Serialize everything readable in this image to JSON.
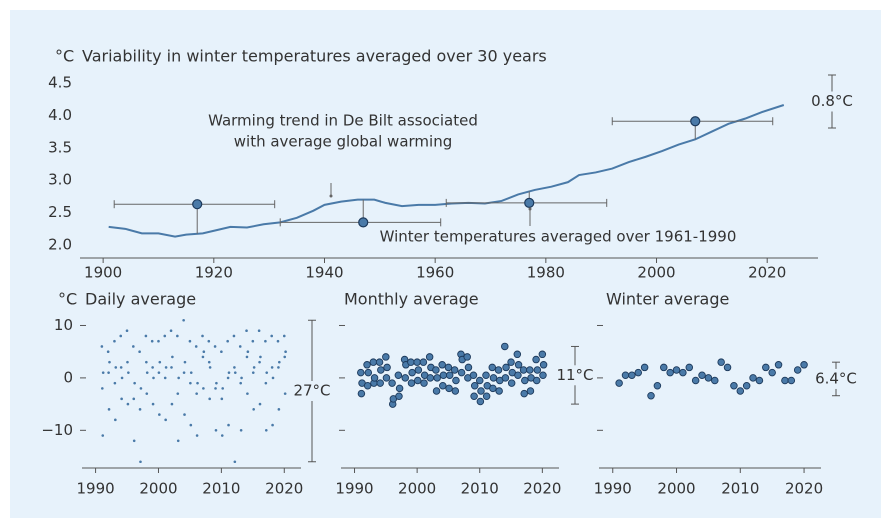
{
  "chart_data": [
    {
      "type": "line",
      "title": "Variability in winter temperatures averaged over 30 years",
      "y_unit": "°C",
      "x": [
        1901,
        1904,
        1907,
        1910,
        1913,
        1915,
        1918,
        1921,
        1923,
        1926,
        1929,
        1932,
        1935,
        1938,
        1940,
        1943,
        1946,
        1949,
        1951,
        1954,
        1957,
        1960,
        1963,
        1966,
        1969,
        1972,
        1975,
        1978,
        1981,
        1984,
        1986,
        1989,
        1992,
        1995,
        1998,
        2001,
        2004,
        2007,
        2010,
        2013,
        2016,
        2019,
        2023
      ],
      "values": [
        2.28,
        2.25,
        2.18,
        2.18,
        2.13,
        2.16,
        2.18,
        2.24,
        2.28,
        2.27,
        2.32,
        2.35,
        2.42,
        2.53,
        2.62,
        2.67,
        2.7,
        2.7,
        2.65,
        2.6,
        2.62,
        2.62,
        2.64,
        2.65,
        2.64,
        2.68,
        2.78,
        2.85,
        2.9,
        2.97,
        3.08,
        3.12,
        3.18,
        3.28,
        3.36,
        3.45,
        3.55,
        3.63,
        3.75,
        3.87,
        3.95,
        4.05,
        4.16
      ],
      "color": "#4a7aa8",
      "periods": {
        "x": [
          1917,
          1947,
          1977,
          2007
        ],
        "values": [
          2.63,
          2.35,
          2.65,
          3.91
        ],
        "start": [
          1902,
          1932,
          1962,
          1992
        ],
        "end": [
          1931,
          1961,
          1991,
          2021
        ]
      },
      "annotations": [
        "Warming trend in De Bilt associated",
        "with average global warming",
        "Winter temperatures averaged over 1961-1990"
      ],
      "range_label": "0.8°C",
      "xlim": [
        1896,
        2029
      ],
      "ylim": [
        1.8,
        4.7
      ],
      "xticks": [
        1900,
        1920,
        1940,
        1960,
        1980,
        2000,
        2020
      ],
      "yticks": [
        {
          "value": 2,
          "label": "2.0"
        },
        2.5,
        {
          "value": 3,
          "label": "3.0"
        },
        3.5,
        {
          "value": 4,
          "label": "4.0"
        },
        4.5
      ]
    },
    {
      "type": "scatter",
      "title": "Daily average",
      "y_unit": "°C",
      "marker": "dot",
      "color": "#4a7aa8",
      "show_ytick_labels": true,
      "x": [
        1991,
        1991.07,
        1991.14,
        1991.21,
        1992,
        1992.07,
        1992.14,
        1992.21,
        1993,
        1993.07,
        1993.14,
        1993.21,
        1994,
        1994.07,
        1994.14,
        1994.21,
        1995,
        1995.07,
        1995.14,
        1995.21,
        1996,
        1996.07,
        1996.14,
        1996.21,
        1997,
        1997.07,
        1997.14,
        1997.21,
        1998,
        1998.07,
        1998.14,
        1998.21,
        1999,
        1999.07,
        1999.14,
        1999.21,
        2000,
        2000.07,
        2000.14,
        2000.21,
        2001,
        2001.07,
        2001.14,
        2001.21,
        2002,
        2002.07,
        2002.14,
        2002.21,
        2003,
        2003.07,
        2003.14,
        2003.21,
        2004,
        2004.07,
        2004.14,
        2004.21,
        2005,
        2005.07,
        2005.14,
        2005.21,
        2006,
        2006.07,
        2006.14,
        2006.21,
        2007,
        2007.07,
        2007.14,
        2007.21,
        2008,
        2008.07,
        2008.14,
        2008.21,
        2009,
        2009.07,
        2009.14,
        2009.21,
        2010,
        2010.07,
        2010.14,
        2010.21,
        2011,
        2011.07,
        2011.14,
        2011.21,
        2012,
        2012.07,
        2012.14,
        2012.21,
        2013,
        2013.07,
        2013.14,
        2013.21,
        2014,
        2014.07,
        2014.14,
        2014.21,
        2015,
        2015.07,
        2015.14,
        2015.21,
        2016,
        2016.07,
        2016.14,
        2016.21,
        2017,
        2017.07,
        2017.14,
        2017.21,
        2018,
        2018.07,
        2018.14,
        2018.21,
        2019,
        2019.07,
        2019.14,
        2019.21,
        2020,
        2020.07,
        2020.14,
        2020.21
      ],
      "values": [
        6,
        -2,
        -11,
        1,
        5,
        1,
        -6,
        3,
        7,
        -1,
        -8,
        2,
        8,
        2,
        -4,
        0,
        9,
        3,
        -5,
        1,
        6,
        -4,
        -12,
        -1,
        5,
        -6,
        -16,
        -2,
        8,
        3,
        -3,
        1,
        7,
        2,
        -5,
        0,
        7,
        1,
        -7,
        3,
        8,
        0,
        -8,
        2,
        9,
        2,
        -5,
        4,
        8,
        -3,
        -12,
        0,
        11,
        1,
        -7,
        3,
        7,
        -1,
        -9,
        1,
        6,
        -3,
        -11,
        -1,
        8,
        4,
        -2,
        5,
        7,
        3,
        -4,
        2,
        6,
        -2,
        -10,
        -1,
        5,
        -4,
        -11,
        -2,
        7,
        0,
        -9,
        1,
        8,
        2,
        -16,
        1,
        6,
        -1,
        -10,
        0,
        9,
        4,
        -3,
        5,
        7,
        1,
        -6,
        2,
        9,
        3,
        -5,
        4,
        7,
        -1,
        -10,
        1,
        8,
        2,
        -9,
        0,
        7,
        2,
        -6,
        3,
        8,
        4,
        -3,
        5
      ],
      "range_label": "27°C",
      "xlim": [
        1988,
        2022.5
      ],
      "ylim": [
        -17,
        12
      ],
      "xticks": [
        1990,
        2000,
        2010,
        2020
      ],
      "yticks": [
        {
          "value": -10,
          "label": "−10"
        },
        0,
        10
      ]
    },
    {
      "type": "scatter",
      "title": "Monthly average",
      "marker": "circle",
      "color": "#4a7aa8",
      "show_ytick_labels": false,
      "x": [
        1991,
        1991.1,
        1991.2,
        1992,
        1992.1,
        1992.2,
        1993,
        1993.1,
        1993.2,
        1994,
        1994.1,
        1994.2,
        1995,
        1995.1,
        1995.2,
        1996,
        1996.1,
        1996.2,
        1997,
        1997.1,
        1997.2,
        1998,
        1998.1,
        1998.2,
        1999,
        1999.1,
        1999.2,
        2000,
        2000.1,
        2000.2,
        2001,
        2001.1,
        2001.2,
        2002,
        2002.1,
        2002.2,
        2003,
        2003.1,
        2003.2,
        2004,
        2004.1,
        2004.2,
        2005,
        2005.1,
        2005.2,
        2006,
        2006.1,
        2006.2,
        2007,
        2007.1,
        2007.2,
        2008,
        2008.1,
        2008.2,
        2009,
        2009.1,
        2009.2,
        2010,
        2010.1,
        2010.2,
        2011,
        2011.1,
        2011.2,
        2012,
        2012.1,
        2012.2,
        2013,
        2013.1,
        2013.2,
        2014,
        2014.1,
        2014.2,
        2015,
        2015.1,
        2015.2,
        2016,
        2016.1,
        2016.2,
        2017,
        2017.1,
        2017.2,
        2018,
        2018.1,
        2018.2,
        2019,
        2019.1,
        2019.2,
        2020,
        2020.1,
        2020.2
      ],
      "values": [
        1,
        -3,
        -1,
        2.5,
        -1.5,
        1,
        3,
        -1,
        0,
        3,
        -1,
        1.5,
        4,
        0,
        2,
        -1,
        -5,
        -4,
        0.5,
        -3.5,
        -2,
        3.5,
        0,
        2.5,
        3,
        -1,
        1,
        3,
        -0.5,
        1.5,
        3,
        -1,
        0.5,
        4,
        0,
        2,
        1.5,
        -2.5,
        0,
        2.5,
        -1.5,
        0.5,
        2,
        -2,
        0.5,
        1.5,
        -2.5,
        -0.5,
        4.5,
        1,
        3.5,
        4,
        0,
        2,
        0.5,
        -3.5,
        -1.5,
        -0.5,
        -4.5,
        -2.5,
        0.5,
        -3.5,
        -1.5,
        2,
        -2,
        0,
        1.5,
        -2.5,
        -0.5,
        6,
        0,
        2,
        3,
        -1,
        1,
        4.5,
        0.5,
        2.5,
        1.5,
        -3,
        -0.5,
        1.5,
        -2.5,
        0,
        3.5,
        -0.5,
        1.5,
        4.5,
        0.5,
        2.5
      ],
      "range_label": "11°C",
      "xlim": [
        1988,
        2022.5
      ],
      "ylim": [
        -17,
        12
      ],
      "xticks": [
        1990,
        2000,
        2010,
        2020
      ],
      "yticks": [
        -10,
        0,
        10
      ]
    },
    {
      "type": "scatter",
      "title": "Winter average",
      "marker": "circle",
      "color": "#4a7aa8",
      "show_ytick_labels": false,
      "x": [
        1991,
        1992,
        1993,
        1994,
        1995,
        1996,
        1997,
        1998,
        1999,
        2000,
        2001,
        2002,
        2003,
        2004,
        2005,
        2006,
        2007,
        2008,
        2009,
        2010,
        2011,
        2012,
        2013,
        2014,
        2015,
        2016,
        2017,
        2018,
        2019,
        2020
      ],
      "values": [
        -1,
        0.5,
        0.5,
        1,
        2,
        -3.4,
        -1.5,
        2,
        1,
        1.5,
        1,
        2,
        -0.5,
        0.5,
        0,
        -0.5,
        3,
        2,
        -1.5,
        -2.5,
        -1.5,
        0,
        -0.5,
        2,
        1,
        2.5,
        -0.5,
        -0.5,
        1.5,
        2.5
      ],
      "range_label": "6.4°C",
      "xlim": [
        1988,
        2022.5
      ],
      "ylim": [
        -17,
        12
      ],
      "xticks": [
        1990,
        2000,
        2010,
        2020
      ],
      "yticks": [
        -10,
        0,
        10
      ]
    }
  ]
}
